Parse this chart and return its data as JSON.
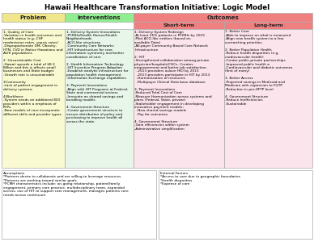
{
  "title": "Hawaii Healthcare Transformation Initiative: Logic Model",
  "col_header_colors": [
    "#f0e68c",
    "#90ee90",
    "#f08080",
    "#f08080"
  ],
  "body_bg_colors": [
    "#fafad2",
    "#e8f5e9",
    "#fce4ec",
    "#fce4ec"
  ],
  "problem_text": "1. Quality of Care\n-Variation in health outcomes and\nhealth status (e.g.-CHF\nreadmission rates, sepsis rates)\n-Disproportionate DM, Obesity,\nHTN, CVD in Native Hawaiians and\nALHI populations\n\n2. Unsustainable Cost\n-Hawaii spends a total of $8.3\nBillion and this is affects small\nbusinesses and State budget\n-Growth rate is unsustainable\n\n3.Community\n-Lack of patient engagement in\ndelivery systems\n\n4.Workforce\n-System needs an additional 800\nproviders within a emphasis of\nPCPs.\n-New models of care incorporate\ndifferent skills and provider types.",
  "interventions_text": "1. Delivery System Innovations\n-PCMHs/Health Homes/Health\nNeighborhoods\n-ACO-like structures\n-Community Care Networks\n-HIT infrastructure for care\ninformation symmetry and better\ncoordination of care\n\n2. Health Information Technology\n-HIT Incentive Program Adoption\n-Establish analytic infrastructure for\npopulation health management\n-Information Exchange capabilities\n\n3. Payment Innovations\n-Align with HIT Programs at Federal,\nState and commercial sectors\n-Innovate on shared savings and\nbundling models\n\n4. Government Structure\n-Create government structure to\nensure distribution of policy and\npurchasing to improve health all\nacross the state.",
  "short_term_text": "1. Delivery System Redesign\n-At least 25% patients in PCMHs by 2015\n-Pilot ACO-like entities (based on\navailable Data)\n-All-payer Community-Based Care Network\nInfrastructure\n\n2. HIT\n-Strengthened collaboration among private\nphysician/hospitals/CHCs. Creates\nempowerment and better job satisfaction.\n  -2013 providers aslave HIO by 2013\n  -2013 providers participate in HIT by 2013\n  -Harmonization of measures\n  -Multipayer Clinical Data base database\n\n3. Payment Innovations\n-Reduced Total Cost of Care\n-Measure Harmonization across systems and\nplans (Federal, State, private)\n-Stakeholder engagement in developing\ninnovative payment models:\n  -New shared savings models\n  -Pay for outcomes\n\n4. Government Structure\n-Gain efficiencies within system\n-Administrative simplification",
  "long_term_text": "1. Better Care\n-Able to improve on what is measured\n-Align new health system to a few\noverarching priorities.\n\n2. Better Population Health\n-Reduce health disparities (e.g.\ncardiovascular health)\n-Create public-private partnerships\n-Improved public health a\n-Cardiovascular and diabetic outcomes\n(first of many)\n\n3. Better Access\n-Projected savings in Medicaid and\nMedicare with expansion to FQTP\n-Reduction in per-HFTP level\n\n4. Government Structure\n-Reduce Inefficiencies\n-Sustainable",
  "assumptions_text": "Assumptions\n*Partners desire to collaborate and are willing to leverage resources\n*Partners are working toward similar goals\n*PCMH characteristics include: on-going relationship, patient/family\nengagement, primary care practice, multidisciplinary team, expanded\naccess, use of HIT to support care management, manages patients care\nneeds across continuum",
  "external_text": "External Factors\n*Access to care due to geographic boundaries\n*Health disparities\n*Expense of care",
  "bg_color": "#ffffff",
  "border_color": "#aaaaaa",
  "text_color": "#000000"
}
